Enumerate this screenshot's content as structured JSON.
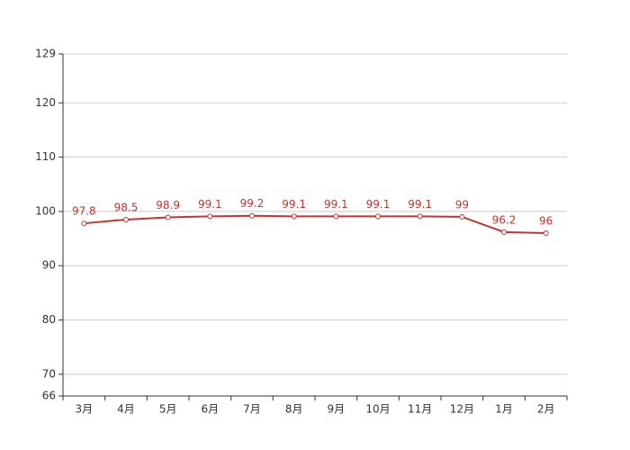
{
  "chart_data": {
    "type": "line",
    "categories": [
      "3月",
      "4月",
      "5月",
      "6月",
      "7月",
      "8月",
      "9月",
      "10月",
      "11月",
      "12月",
      "1月",
      "2月"
    ],
    "series": [
      {
        "color": "#c23531",
        "values": [
          97.8,
          98.5,
          98.9,
          99.1,
          99.2,
          99.1,
          99.1,
          99.1,
          99.1,
          99,
          96.2,
          96
        ]
      }
    ],
    "ylim": [
      66,
      129
    ],
    "yticks": [
      66,
      70,
      80,
      90,
      100,
      110,
      120,
      129
    ],
    "grid": true
  }
}
